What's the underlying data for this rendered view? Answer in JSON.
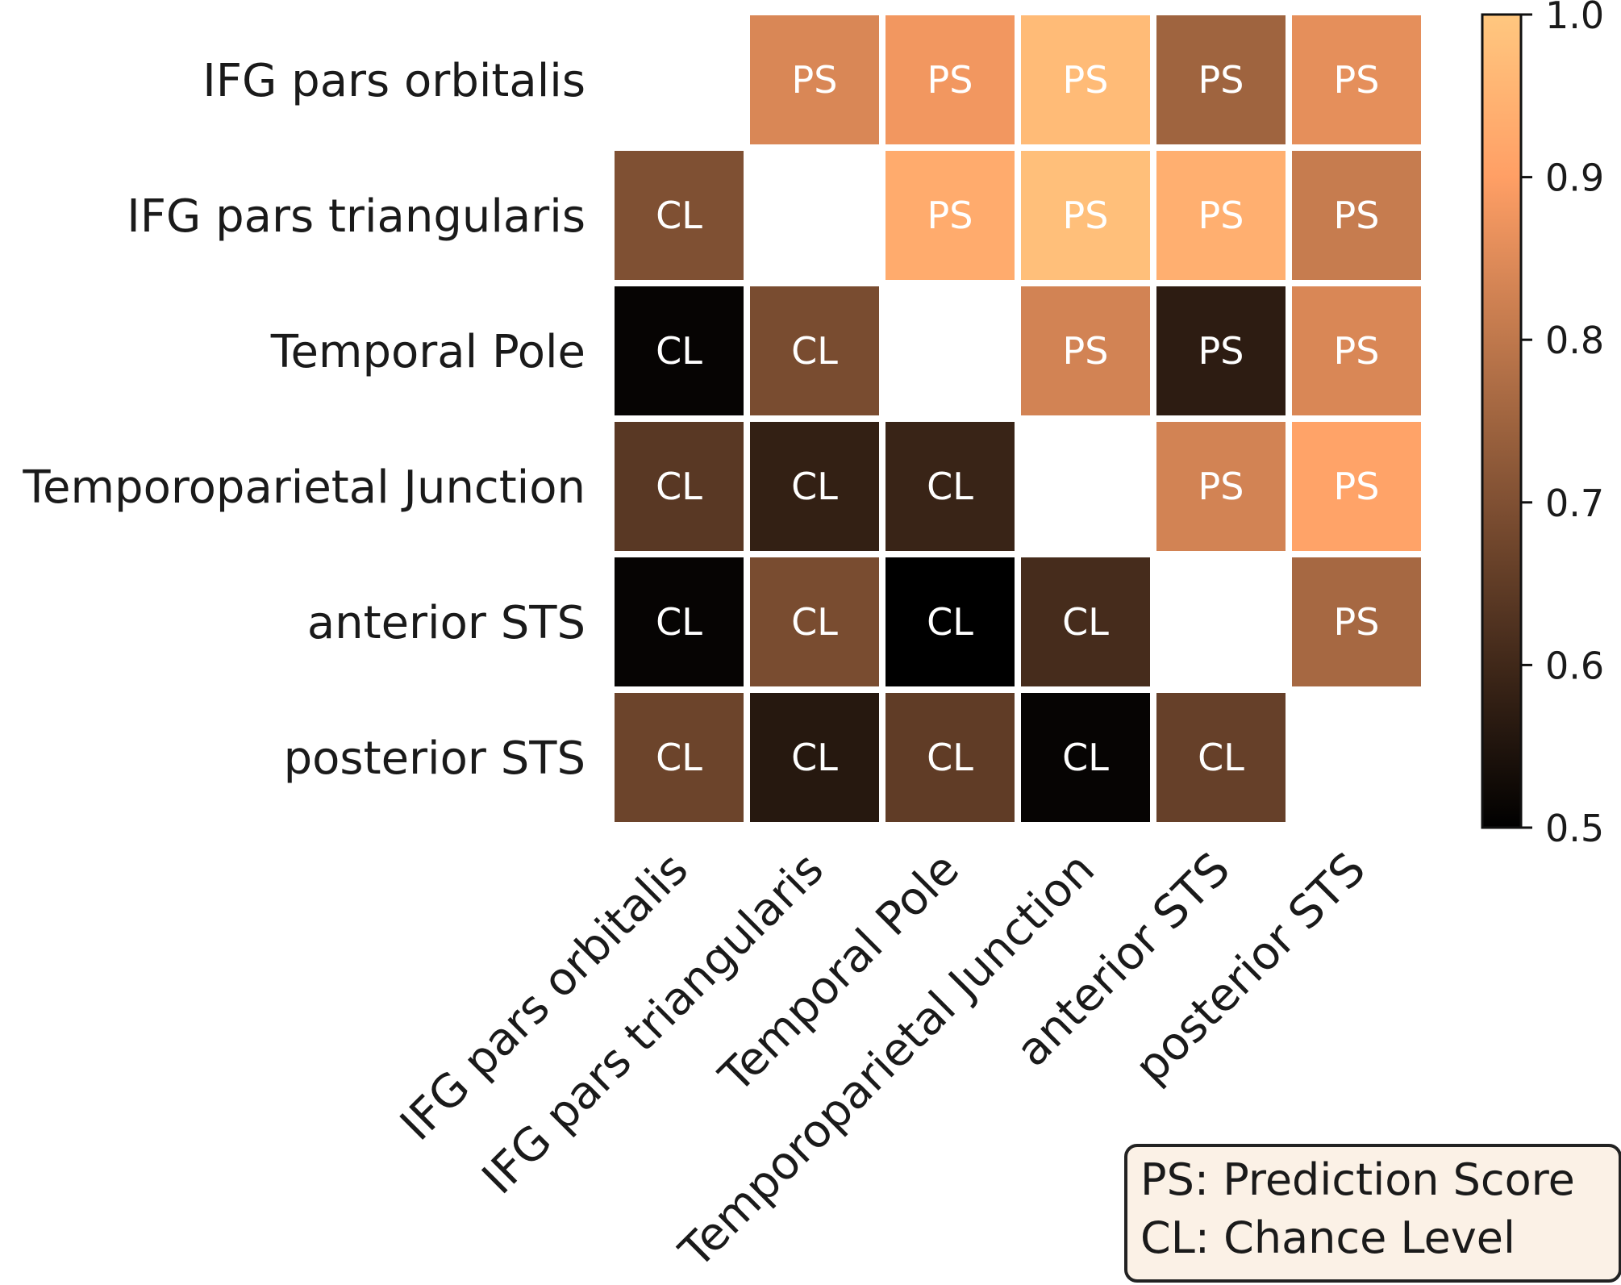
{
  "chart_data": {
    "type": "heatmap",
    "row_labels": [
      "IFG pars orbitalis",
      "IFG pars triangularis",
      "Temporal Pole",
      "Temporoparietal Junction",
      "anterior STS",
      "posterior STS"
    ],
    "col_labels": [
      "IFG pars orbitalis",
      "IFG pars triangularis",
      "Temporal Pole",
      "Temporoparietal Junction",
      "anterior STS",
      "posterior STS"
    ],
    "values": [
      [
        null,
        0.84,
        0.88,
        0.97,
        0.75,
        0.86
      ],
      [
        0.7,
        null,
        0.93,
        0.98,
        0.94,
        0.81
      ],
      [
        0.51,
        0.69,
        null,
        0.83,
        0.57,
        0.84
      ],
      [
        0.64,
        0.58,
        0.59,
        null,
        0.83,
        0.91
      ],
      [
        0.51,
        0.69,
        0.5,
        0.61,
        null,
        0.76
      ],
      [
        0.67,
        0.56,
        0.65,
        0.51,
        0.66,
        null
      ]
    ],
    "cell_labels": [
      [
        "",
        "PS",
        "PS",
        "PS",
        "PS",
        "PS"
      ],
      [
        "CL",
        "",
        "PS",
        "PS",
        "PS",
        "PS"
      ],
      [
        "CL",
        "CL",
        "",
        "PS",
        "PS",
        "PS"
      ],
      [
        "CL",
        "CL",
        "CL",
        "",
        "PS",
        "PS"
      ],
      [
        "CL",
        "CL",
        "CL",
        "CL",
        "",
        "PS"
      ],
      [
        "CL",
        "CL",
        "CL",
        "CL",
        "CL",
        ""
      ]
    ],
    "colorbar": {
      "colormap": "copper",
      "range": [
        0.5,
        1.0
      ],
      "ticks": [
        "0.5",
        "0.6",
        "0.7",
        "0.8",
        "0.9",
        "1.0"
      ]
    },
    "legend": {
      "placement": "bottom-right",
      "lines": [
        "PS: Prediction Score",
        "CL: Chance Level"
      ]
    }
  }
}
